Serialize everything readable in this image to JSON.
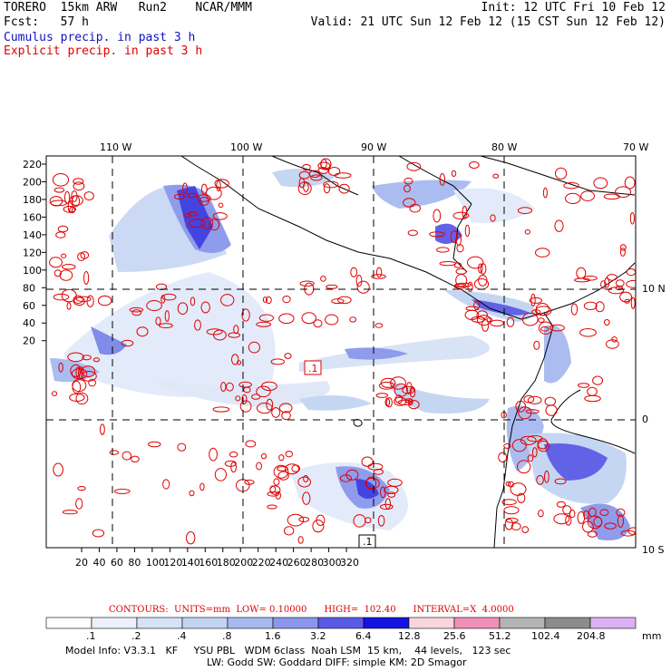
{
  "header": {
    "model": "TORERO  15km ARW   Run2    NCAR/MMM",
    "fcst": "Fcst:   57 h",
    "init": "Init: 12 UTC Fri 10 Feb 12",
    "valid": "Valid: 21 UTC Sun 12 Feb 12 (15 CST Sun 12 Feb 12)",
    "cumulus": "Cumulus precip. in past 3 h",
    "explicit": "Explicit precip. in past 3 h"
  },
  "map": {
    "top_lon_labels": [
      "110 W",
      "100 W",
      "90 W",
      "80 W",
      "70 W"
    ],
    "y_ticks": [
      "220",
      "200",
      "180",
      "160",
      "140",
      "120",
      "100",
      "80",
      "60",
      "40",
      "20"
    ],
    "x_ticks": [
      "20",
      "40",
      "60",
      "80",
      "100",
      "120",
      "140",
      "160",
      "180",
      "200",
      "220",
      "240",
      "260",
      "280",
      "300",
      "320"
    ],
    "right_lat_labels": [
      "10 N",
      "0",
      "10 S"
    ],
    "low_markers": [
      ".1",
      ".1"
    ],
    "colors": {
      "land_outline": "#000000",
      "grid": "#000000",
      "explicit_contour": "#e00000"
    }
  },
  "contours_line": "CONTOURS:  UNITS=mm  LOW= 0.10000      HIGH=  102.40      INTERVAL=X  4.0000",
  "colorbar": {
    "labels": [
      ".1",
      ".2",
      ".4",
      ".8",
      "1.6",
      "3.2",
      "6.4",
      "12.8",
      "25.6",
      "51.2",
      "102.4",
      "204.8"
    ],
    "unit": "mm",
    "colors": [
      "#ffffff",
      "#ebf0fa",
      "#d6e2f6",
      "#c2d4f2",
      "#a7baf0",
      "#8a97ec",
      "#5a5ae6",
      "#1414e0",
      "#f8d6dc",
      "#f090b8",
      "#b4b4b4",
      "#8c8c8c",
      "#dcb0f4"
    ]
  },
  "footer": {
    "line1": "Model Info: V3.3.1   KF     YSU PBL   WDM 6class  Noah LSM  15 km,    44 levels,   123 sec",
    "line2": "LW: Godd SW: Goddard DIFF: simple KM: 2D Smagor"
  }
}
